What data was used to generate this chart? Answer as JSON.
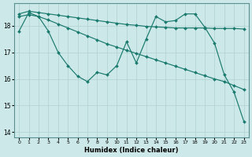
{
  "xlabel": "Humidex (Indice chaleur)",
  "background_color": "#cce8e8",
  "line_color": "#1a7a6e",
  "grid_color": "#b0d0d0",
  "xlim": [
    -0.5,
    23.5
  ],
  "ylim": [
    13.8,
    18.85
  ],
  "yticks": [
    14,
    15,
    16,
    17,
    18
  ],
  "xticks": [
    0,
    1,
    2,
    3,
    4,
    5,
    6,
    7,
    8,
    9,
    10,
    11,
    12,
    13,
    14,
    15,
    16,
    17,
    18,
    19,
    20,
    21,
    22,
    23
  ],
  "series": [
    {
      "x": [
        0,
        1,
        2,
        3,
        4,
        5,
        6,
        7,
        8,
        9,
        10,
        11,
        12,
        13,
        14,
        15,
        16,
        17,
        18,
        19,
        20,
        21,
        22,
        23
      ],
      "y": [
        18.45,
        18.55,
        18.5,
        18.45,
        18.4,
        18.35,
        18.3,
        18.25,
        18.2,
        18.15,
        18.1,
        18.05,
        18.02,
        17.98,
        17.96,
        17.94,
        17.92,
        17.92,
        17.92,
        17.92,
        17.9,
        17.9,
        17.9,
        17.88
      ]
    },
    {
      "x": [
        0,
        1,
        2,
        3,
        4,
        5,
        6,
        7,
        8,
        9,
        10,
        11,
        12,
        13,
        14,
        15,
        16,
        17,
        18,
        19,
        20,
        21,
        22,
        23
      ],
      "y": [
        18.35,
        18.42,
        18.35,
        18.22,
        18.07,
        17.92,
        17.77,
        17.62,
        17.47,
        17.32,
        17.2,
        17.08,
        16.96,
        16.84,
        16.72,
        16.6,
        16.48,
        16.36,
        16.24,
        16.12,
        16.0,
        15.9,
        15.75,
        15.6
      ]
    },
    {
      "x": [
        0,
        1,
        2,
        3,
        4,
        5,
        6,
        7,
        8,
        9,
        10,
        11,
        12,
        13,
        14,
        15,
        16,
        17,
        18,
        19,
        20,
        21,
        22,
        23
      ],
      "y": [
        17.8,
        18.5,
        18.35,
        17.8,
        17.0,
        16.5,
        16.1,
        15.9,
        16.25,
        16.15,
        16.5,
        17.4,
        16.6,
        17.5,
        18.35,
        18.15,
        18.2,
        18.45,
        18.45,
        17.95,
        17.35,
        16.15,
        15.5,
        14.4
      ]
    }
  ]
}
